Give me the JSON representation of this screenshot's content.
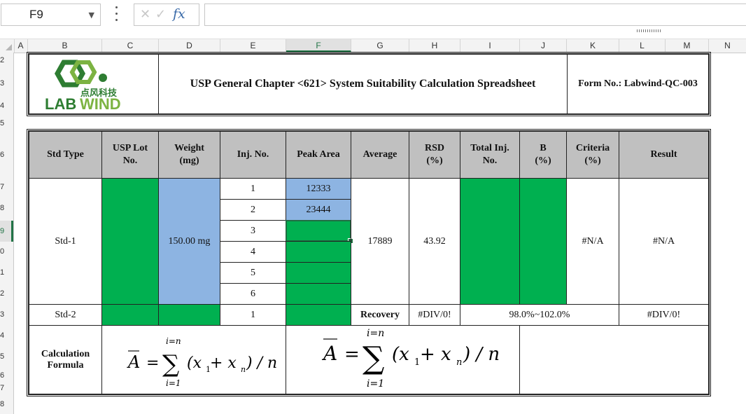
{
  "formula_bar": {
    "name_box": "F9",
    "cancel_glyph": "✕",
    "enter_glyph": "✓",
    "fx_label": "fx",
    "formula_value": ""
  },
  "columns": [
    "A",
    "B",
    "C",
    "D",
    "E",
    "F",
    "G",
    "H",
    "I",
    "J",
    "K",
    "L",
    "M",
    "N"
  ],
  "selected_column": "F",
  "rows": [
    "2",
    "3",
    "4",
    "5",
    "6",
    "7",
    "8",
    "9",
    "0",
    "1",
    "2",
    "3",
    "4",
    "5",
    "6",
    "7",
    "8"
  ],
  "selected_row": "9",
  "header_block": {
    "logo_cn": "点风科技",
    "logo_text_lab": "LAB",
    "logo_text_wind": "WIND",
    "title": "USP General Chapter <621> System Suitability Calculation Spreadsheet",
    "form_no": "Form No.: Labwind-QC-003"
  },
  "table": {
    "headers": {
      "std_type": "Std Type",
      "usp_lot_1": "USP Lot",
      "usp_lot_2": "No.",
      "weight_1": "Weight",
      "weight_2": "(mg)",
      "inj_no": "Inj. No.",
      "peak_area": "Peak Area",
      "average": "Average",
      "rsd_1": "RSD",
      "rsd_2": "(%)",
      "total_inj_1": "Total Inj.",
      "total_inj_2": "No.",
      "b_1": "B",
      "b_2": "(%)",
      "criteria_1": "Criteria",
      "criteria_2": "(%)",
      "result": "Result"
    },
    "std1": {
      "label": "Std-1",
      "weight": "150.00 mg",
      "injections": [
        "1",
        "2",
        "3",
        "4",
        "5",
        "6"
      ],
      "peak_areas": [
        "12333",
        "23444",
        "",
        "",
        "",
        ""
      ],
      "average": "17889",
      "rsd": "43.92",
      "criteria": "#N/A",
      "result": "#N/A"
    },
    "std2": {
      "label": "Std-2",
      "injection": "1",
      "recovery_label": "Recovery",
      "recovery_value": "#DIV/0!",
      "range": "98.0%~102.0%",
      "result": "#DIV/0!"
    },
    "calc": {
      "label_1": "Calculation",
      "label_2": "Formula",
      "formula_small": {
        "abar": "A",
        "eq": "=",
        "sum": "∑",
        "top": "i=n",
        "bottom": "i=1",
        "expr": "(x",
        "sub1": "1",
        "plus": " + x",
        "subn": "n",
        "tail": ") / n"
      },
      "formula_large": {
        "abar": "A",
        "eq": "=",
        "sum": "∑",
        "top": "i=n",
        "bottom": "i=1",
        "expr": "(x",
        "sub1": "1",
        "plus": " + x",
        "subn": "n",
        "tail": ") / n"
      }
    }
  },
  "colors": {
    "green_fill": "#00b050",
    "blue_fill": "#8db4e2",
    "header_fill": "#c0c0c0",
    "selection": "#217346",
    "logo_green": "#2e7d32",
    "logo_lime": "#7cb342"
  }
}
